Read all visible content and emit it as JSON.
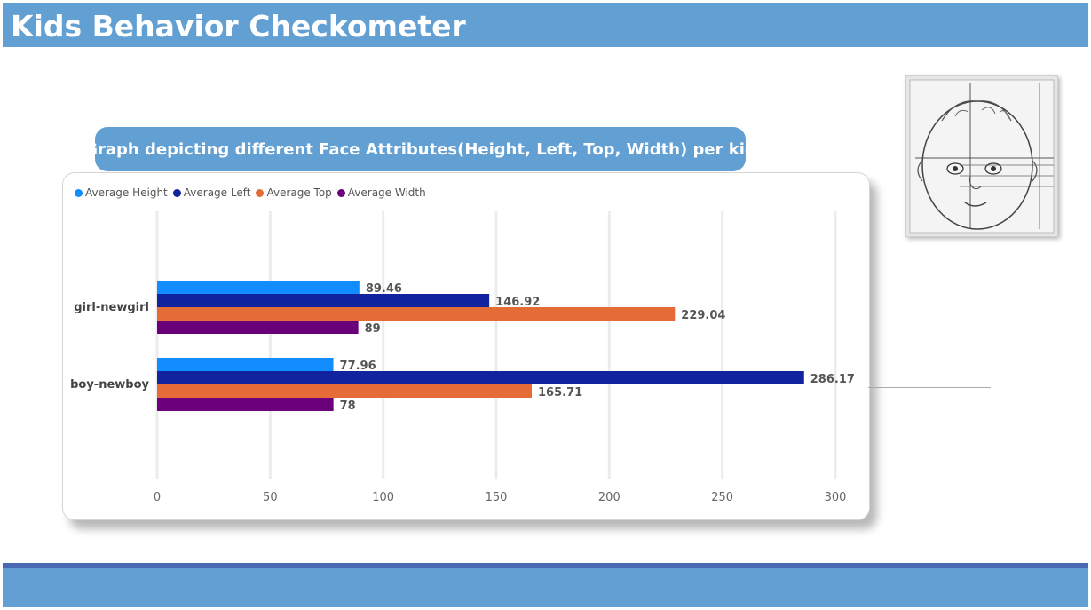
{
  "header": {
    "title": "Kids Behavior Checkometer"
  },
  "chart_title": "Graph depicting different Face Attributes(Height, Left, Top, Width) per kid",
  "portrait": {
    "icon": "baby-face-sketch-icon"
  },
  "chart_data": {
    "type": "bar",
    "orientation": "horizontal",
    "categories": [
      "girl-newgirl",
      "boy-newboy"
    ],
    "series": [
      {
        "name": "Average Height",
        "color": "#118dff",
        "values": [
          89.46,
          77.96
        ],
        "labels": [
          "89.46",
          "77.96"
        ]
      },
      {
        "name": "Average Left",
        "color": "#12239e",
        "values": [
          146.92,
          286.17
        ],
        "labels": [
          "146.92",
          "286.17"
        ]
      },
      {
        "name": "Average Top",
        "color": "#e66c37",
        "values": [
          229.04,
          165.71
        ],
        "labels": [
          "229.04",
          "165.71"
        ]
      },
      {
        "name": "Average Width",
        "color": "#6b007b",
        "values": [
          89,
          78
        ],
        "labels": [
          "89",
          "78"
        ]
      }
    ],
    "xticks": [
      "0",
      "50",
      "100",
      "150",
      "200",
      "250",
      "300"
    ],
    "xlim": [
      0,
      300
    ],
    "grid": true,
    "legend_position": "top-left"
  }
}
